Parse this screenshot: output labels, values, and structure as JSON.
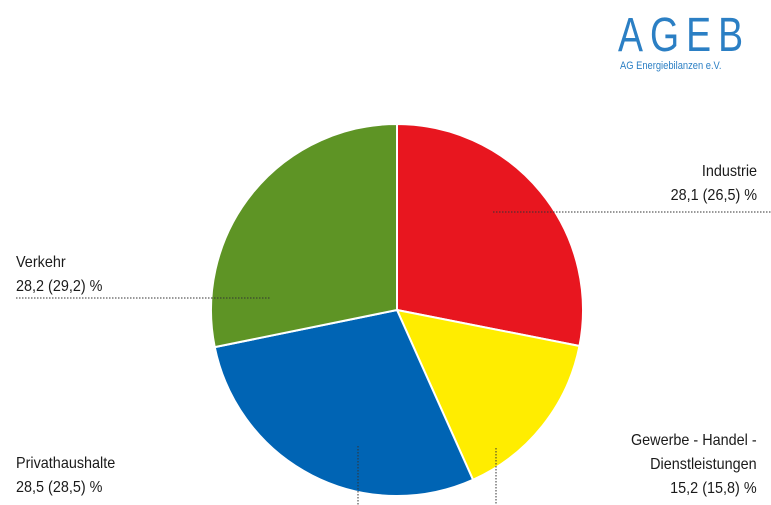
{
  "logo": {
    "wordmark": "AGEB",
    "subtitle": "AG Energiebilanzen e.V.",
    "color": "#2b7fc4"
  },
  "chart_data": {
    "type": "pie",
    "start_angle": "12 o'clock",
    "direction": "clockwise",
    "slices": [
      {
        "name": "Industrie",
        "value": 28.1,
        "prev": 26.5,
        "label": "28,1 (26,5) %",
        "color": "#e8161f"
      },
      {
        "name": "Gewerbe - Handel - Dienstleistungen",
        "name_lines": [
          "Gewerbe - Handel -",
          "Dienstleistungen"
        ],
        "value": 15.2,
        "prev": 15.8,
        "label": "15,2 (15,8) %",
        "color": "#ffed00"
      },
      {
        "name": "Privathaushalte",
        "value": 28.5,
        "prev": 28.5,
        "label": "28,5 (28,5) %",
        "color": "#0064b4"
      },
      {
        "name": "Verkehr",
        "value": 28.2,
        "prev": 29.2,
        "label": "28,2 (29,2) %",
        "color": "#5e9425"
      }
    ]
  }
}
